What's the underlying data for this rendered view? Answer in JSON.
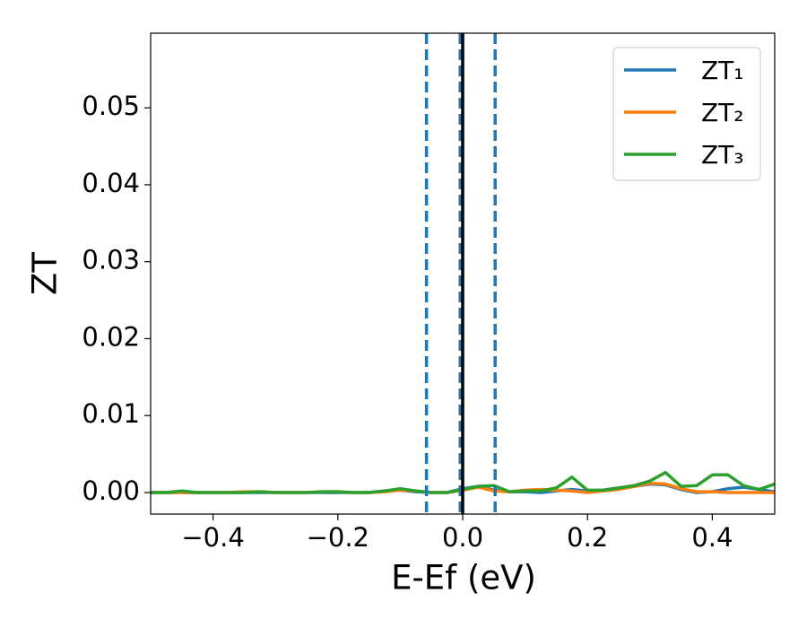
{
  "chart_data": {
    "type": "line",
    "xlabel": "E-Ef (eV)",
    "ylabel": "ZT",
    "x": [
      -0.5,
      -0.475,
      -0.45,
      -0.425,
      -0.4,
      -0.375,
      -0.35,
      -0.325,
      -0.3,
      -0.275,
      -0.25,
      -0.225,
      -0.2,
      -0.175,
      -0.15,
      -0.125,
      -0.1,
      -0.075,
      -0.05,
      -0.025,
      0,
      0.025,
      0.05,
      0.075,
      0.1,
      0.125,
      0.15,
      0.175,
      0.2,
      0.225,
      0.25,
      0.275,
      0.3,
      0.325,
      0.35,
      0.375,
      0.4,
      0.425,
      0.45,
      0.475,
      0.5
    ],
    "series": [
      {
        "name": "ZT₁",
        "color": "#1f77b4",
        "values": [
          0,
          0,
          0,
          0,
          0,
          0,
          0,
          0,
          0,
          0,
          0,
          0,
          0,
          0,
          0,
          0.0002,
          0.0003,
          0.0001,
          0,
          0,
          0.0005,
          0.0008,
          0.0003,
          0.0001,
          0.0001,
          0,
          0.0002,
          0.0004,
          0.0002,
          0.0003,
          0.0006,
          0.0008,
          0.0011,
          0.001,
          0.0004,
          0,
          0.0001,
          0.0005,
          0.0007,
          0.0004,
          0.0001
        ]
      },
      {
        "name": "ZT₂",
        "color": "#ff7f0e",
        "values": [
          0,
          0,
          0,
          0,
          0,
          0,
          0.0001,
          0.0001,
          0,
          0,
          0,
          0.0001,
          0.0001,
          0,
          0,
          0.0001,
          0.0003,
          0.0002,
          0,
          0,
          0.0003,
          0.0007,
          0.0002,
          0.0001,
          0.0003,
          0.0004,
          0.0003,
          0.0002,
          0,
          0.0002,
          0.0004,
          0.0008,
          0.0012,
          0.0011,
          0.0005,
          0.0001,
          0.0001,
          0,
          0,
          0,
          0
        ]
      },
      {
        "name": "ZT₃",
        "color": "#2ca02c",
        "values": [
          0,
          0,
          0.0002,
          0,
          0,
          0,
          0,
          0.0001,
          0,
          0,
          0,
          0.0001,
          0.0001,
          0,
          0,
          0.0002,
          0.0005,
          0.0002,
          0,
          0,
          0.0004,
          0.0008,
          0.0009,
          0.0001,
          0.0002,
          0.0002,
          0.0006,
          0.002,
          0.0003,
          0.0003,
          0.0006,
          0.0009,
          0.0015,
          0.0026,
          0.0008,
          0.0009,
          0.0023,
          0.0023,
          0.0009,
          0.0004,
          0.0011
        ]
      }
    ],
    "vlines": [
      {
        "x": -0.058,
        "color": "#1f77b4",
        "style": "dashed"
      },
      {
        "x": -0.004,
        "color": "#1f77b4",
        "style": "dashed"
      },
      {
        "x": 0.052,
        "color": "#1f77b4",
        "style": "dashed"
      },
      {
        "x": 0,
        "color": "#000000",
        "style": "solid"
      }
    ],
    "xlim": [
      -0.5,
      0.5
    ],
    "xticks": [
      {
        "value": -0.4,
        "label": "−0.4"
      },
      {
        "value": -0.2,
        "label": "−0.2"
      },
      {
        "value": 0,
        "label": "0.0"
      },
      0.2,
      0.4
    ],
    "ylim": [
      -0.0028,
      0.0597
    ],
    "yticks": [
      {
        "value": 0,
        "label": "0.00"
      },
      0.01,
      0.02,
      0.03,
      0.04,
      0.05
    ],
    "legend": "upper right",
    "grid": false
  }
}
